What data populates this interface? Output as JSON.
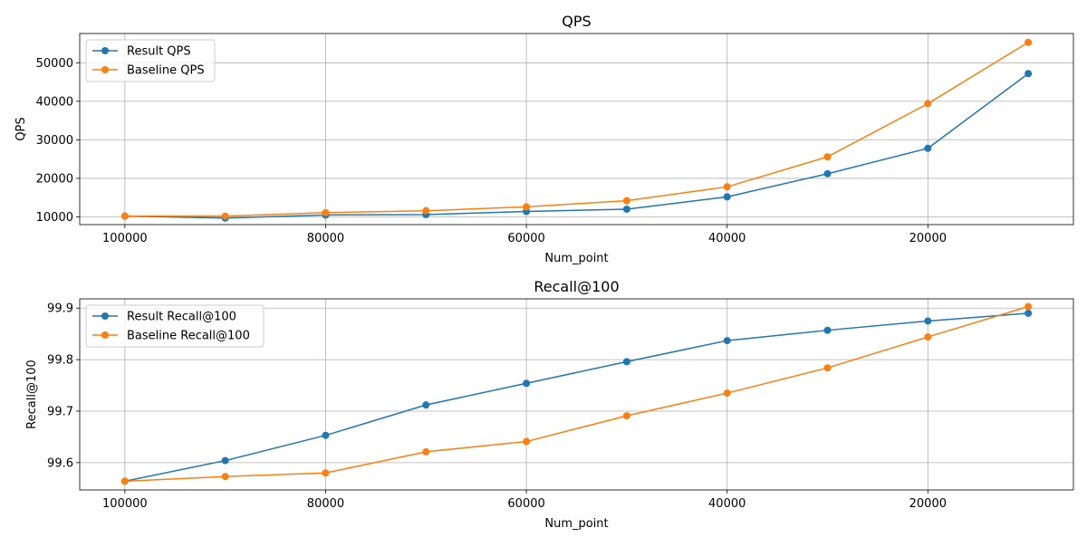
{
  "chart_data": [
    {
      "type": "line",
      "title": "QPS",
      "xlabel": "Num_point",
      "ylabel": "QPS",
      "x": [
        100000,
        90000,
        80000,
        70000,
        60000,
        50000,
        40000,
        30000,
        20000,
        10000
      ],
      "x_reversed": true,
      "xlim": [
        104500,
        5500
      ],
      "ylim": [
        8000,
        57600
      ],
      "xticks": [
        100000,
        80000,
        60000,
        40000,
        20000
      ],
      "yticks": [
        10000,
        20000,
        30000,
        40000,
        50000
      ],
      "grid": true,
      "legend": "upper-left",
      "series": [
        {
          "name": "Result QPS",
          "color": "#1f77b4",
          "values": [
            10200,
            9700,
            10500,
            10600,
            11400,
            12000,
            15200,
            21200,
            27800,
            47200
          ]
        },
        {
          "name": "Baseline QPS",
          "color": "#ff7f0e",
          "values": [
            10200,
            10200,
            11100,
            11600,
            12600,
            14200,
            17800,
            25600,
            39400,
            55300
          ]
        }
      ]
    },
    {
      "type": "line",
      "title": "Recall@100",
      "xlabel": "Num_point",
      "ylabel": "Recall@100",
      "x": [
        100000,
        90000,
        80000,
        70000,
        60000,
        50000,
        40000,
        30000,
        20000,
        10000
      ],
      "x_reversed": true,
      "xlim": [
        104500,
        5500
      ],
      "ylim": [
        99.547,
        99.918
      ],
      "xticks": [
        100000,
        80000,
        60000,
        40000,
        20000
      ],
      "yticks": [
        99.6,
        99.7,
        99.8,
        99.9
      ],
      "grid": true,
      "legend": "upper-left",
      "series": [
        {
          "name": "Result Recall@100",
          "color": "#1f77b4",
          "values": [
            99.564,
            99.604,
            99.653,
            99.712,
            99.754,
            99.796,
            99.837,
            99.857,
            99.875,
            99.89
          ]
        },
        {
          "name": "Baseline Recall@100",
          "color": "#ff7f0e",
          "values": [
            99.564,
            99.573,
            99.58,
            99.621,
            99.641,
            99.691,
            99.735,
            99.784,
            99.844,
            99.903
          ]
        }
      ]
    }
  ]
}
